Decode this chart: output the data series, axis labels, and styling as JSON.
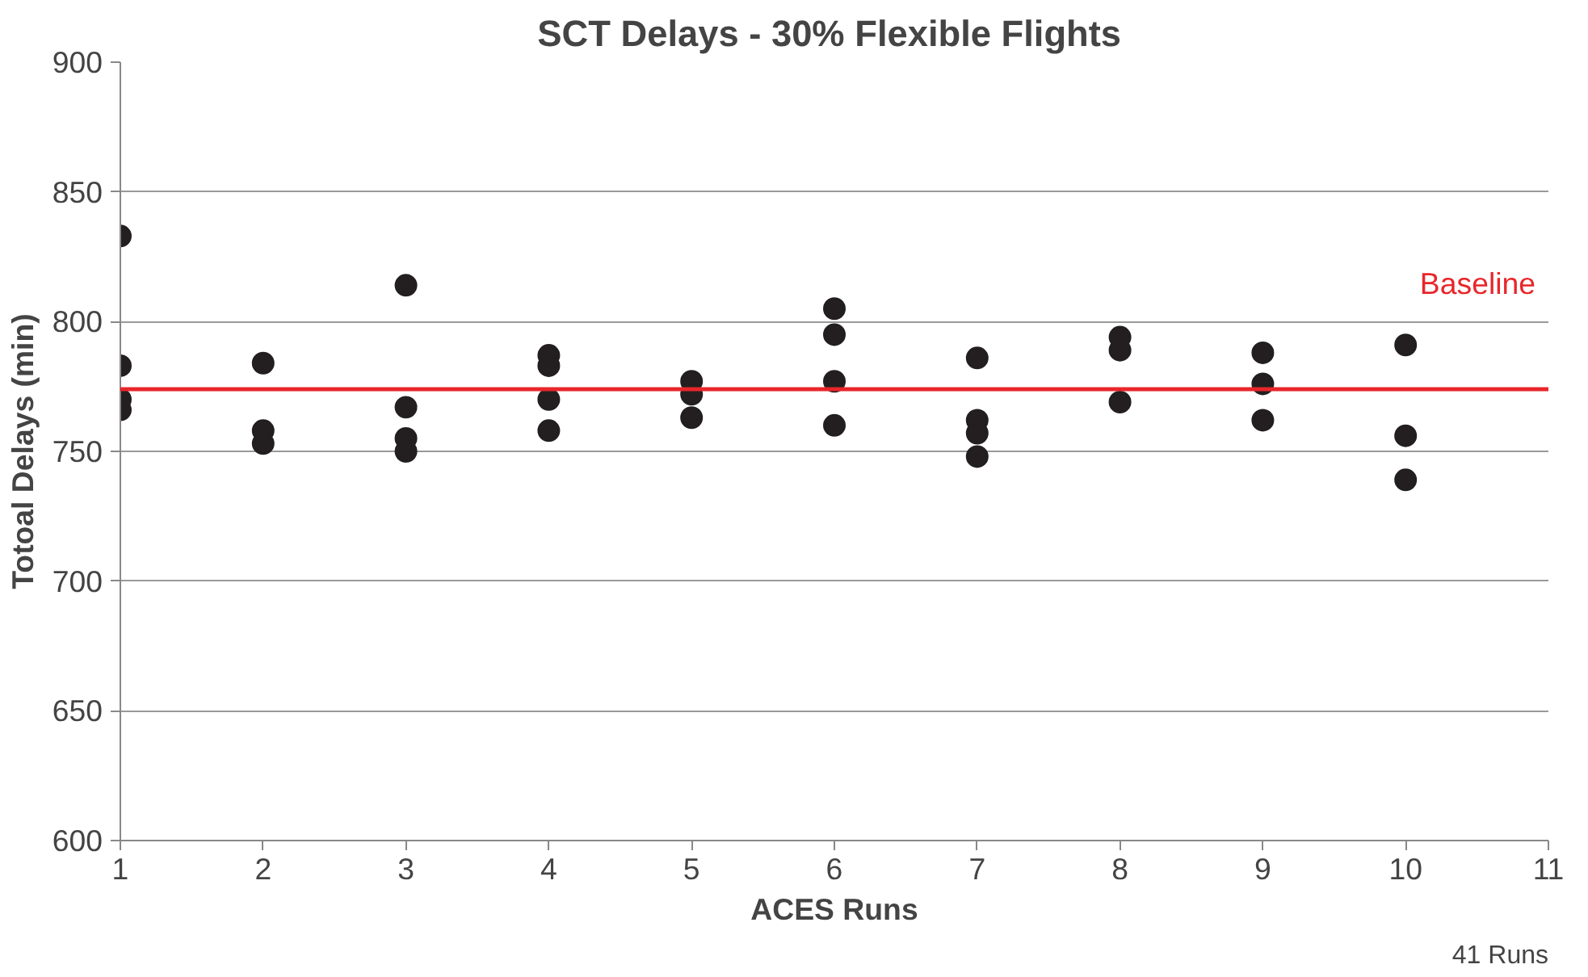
{
  "chart_data": {
    "type": "scatter",
    "title": "SCT Delays - 30% Flexible  Flights",
    "xlabel": "ACES Runs",
    "ylabel": "Totoal Delays (min)",
    "x": [
      1,
      1,
      1,
      1,
      2,
      2,
      2,
      3,
      3,
      3,
      3,
      4,
      4,
      4,
      4,
      5,
      5,
      5,
      6,
      6,
      6,
      6,
      7,
      7,
      7,
      7,
      8,
      8,
      8,
      9,
      9,
      9,
      10,
      10,
      10
    ],
    "series": [
      {
        "color": "#231f20",
        "values": [
          833,
          783,
          770,
          766,
          784,
          758,
          753,
          814,
          767,
          755,
          750,
          787,
          783,
          770,
          758,
          777,
          772,
          763,
          805,
          795,
          777,
          760,
          786,
          762,
          757,
          748,
          794,
          789,
          769,
          788,
          776,
          762,
          791,
          756,
          739
        ]
      }
    ],
    "xlim": [
      1,
      11
    ],
    "xticks": [
      1,
      2,
      3,
      4,
      5,
      6,
      7,
      8,
      9,
      10,
      11
    ],
    "ylim": [
      600,
      900
    ],
    "yticks": [
      600,
      650,
      700,
      750,
      800,
      850,
      900
    ],
    "grid": "y",
    "marker": "circle",
    "ref_lines": [
      {
        "axis": "y",
        "value": 774,
        "label": "Baseline",
        "color": "#e8262b"
      }
    ],
    "annotations": [
      "41 Runs"
    ]
  }
}
